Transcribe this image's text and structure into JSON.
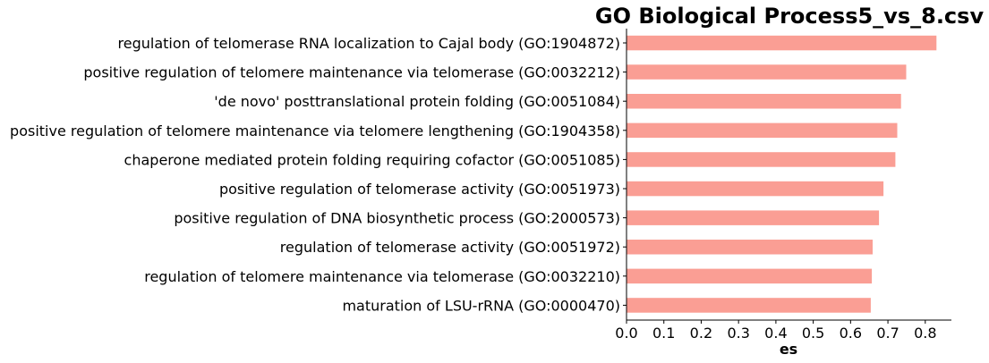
{
  "chart_data": {
    "type": "bar",
    "orientation": "horizontal",
    "title": "GO Biological Process5_vs_8.csv",
    "xlabel": "es",
    "ylabel": "",
    "xlim": [
      0,
      0.87
    ],
    "xticks": [
      "0.0",
      "0.1",
      "0.2",
      "0.3",
      "0.4",
      "0.5",
      "0.6",
      "0.7",
      "0.8"
    ],
    "grid": false,
    "bar_color": "#fa9e94",
    "categories": [
      "regulation of telomerase RNA localization to Cajal body (GO:1904872)",
      "positive regulation of telomere maintenance via telomerase (GO:0032212)",
      "'de novo' posttranslational protein folding (GO:0051084)",
      "positive regulation of telomere maintenance via telomere lengthening (GO:1904358)",
      "chaperone mediated protein folding requiring cofactor (GO:0051085)",
      "positive regulation of telomerase activity (GO:0051973)",
      "positive regulation of DNA biosynthetic process (GO:2000573)",
      "regulation of telomerase activity (GO:0051972)",
      "regulation of telomere maintenance via telomerase (GO:0032210)",
      "maturation of LSU-rRNA (GO:0000470)"
    ],
    "values": [
      0.83,
      0.749,
      0.735,
      0.725,
      0.72,
      0.688,
      0.676,
      0.659,
      0.657,
      0.654
    ]
  }
}
